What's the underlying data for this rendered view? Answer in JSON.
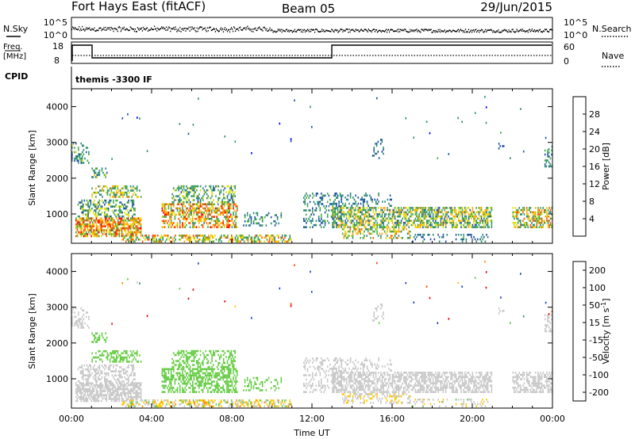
{
  "header": {
    "station": "Fort Hays East (fitACF)",
    "beam": "Beam 05",
    "date": "29/Jun/2015"
  },
  "noise_panel": {
    "left_label": "N.Sky",
    "left_ticks": [
      "10^5",
      "10^0"
    ],
    "right_ticks": [
      "10^5",
      "10^0"
    ],
    "right_label": "N.Search"
  },
  "freq_panel": {
    "left_label_1": "Freq.",
    "left_label_2": "[MHz]",
    "left_ticks": [
      "18",
      "8"
    ],
    "right_ticks": [
      "60",
      "0"
    ],
    "right_label": "Nave"
  },
  "cpid_panel": {
    "left_label": "CPID",
    "text": "themis  -3300  IF"
  },
  "chart_data": [
    {
      "type": "heatmap",
      "name": "Power",
      "x_unit": "Time UT",
      "ylabel": "Slant Range [km]",
      "x_ticks": [
        "00:00",
        "04:00",
        "08:00",
        "12:00",
        "16:00",
        "20:00",
        "00:00"
      ],
      "y_ticks": [
        "1000",
        "2000",
        "3000",
        "4000"
      ],
      "xlim_hours": [
        0,
        24
      ],
      "ylim_km": [
        180,
        4500
      ],
      "colorbar": {
        "label": "Power [dB]",
        "range": [
          0,
          30
        ],
        "tick_labels": [
          "4",
          "8",
          "12",
          "16",
          "20",
          "24",
          "28"
        ],
        "colors": [
          "#0000ff",
          "#1e50a0",
          "#2a8a7a",
          "#44aa44",
          "#dddd00",
          "#ffa500",
          "#ff5500",
          "#ff0000"
        ]
      }
    },
    {
      "type": "heatmap",
      "name": "Velocity",
      "xlabel": "Time UT",
      "ylabel": "Slant Range [km]",
      "x_ticks": [
        "00:00",
        "04:00",
        "08:00",
        "12:00",
        "16:00",
        "20:00",
        "00:00"
      ],
      "y_ticks": [
        "1000",
        "2000",
        "3000",
        "4000"
      ],
      "xlim_hours": [
        0,
        24
      ],
      "ylim_km": [
        180,
        4500
      ],
      "colorbar": {
        "label": "Velocity [m s",
        "label_sup": "-1",
        "label_end": "]",
        "tick_labels": [
          "200",
          "100",
          "50",
          "15",
          "-15",
          "-50",
          "-100",
          "-200"
        ],
        "colors": [
          "#1a3ccc",
          "#3c8c64",
          "#66cc44",
          "#c8c8c8",
          "#ffc800",
          "#ff8c00",
          "#ff4000",
          "#e60000"
        ]
      }
    }
  ],
  "scatter_regions": [
    {
      "t0": 0.2,
      "t1": 3.5,
      "r0": 350,
      "r1": 900,
      "p": 0.7,
      "pw": [
        12,
        28
      ],
      "v": [
        -10,
        10
      ]
    },
    {
      "t0": 0.3,
      "t1": 3.2,
      "r0": 900,
      "r1": 1400,
      "p": 0.45,
      "pw": [
        4,
        18
      ],
      "v": [
        -15,
        15
      ]
    },
    {
      "t0": 1.0,
      "t1": 3.5,
      "r0": 1450,
      "r1": 1800,
      "p": 0.4,
      "pw": [
        8,
        22
      ],
      "v": [
        15,
        60
      ]
    },
    {
      "t0": 1.0,
      "t1": 1.8,
      "r0": 2000,
      "r1": 2300,
      "p": 0.35,
      "pw": [
        6,
        16
      ],
      "v": [
        20,
        60
      ]
    },
    {
      "t0": 0.0,
      "t1": 0.9,
      "r0": 2400,
      "r1": 3000,
      "p": 0.35,
      "pw": [
        4,
        16
      ],
      "v": [
        -10,
        10
      ]
    },
    {
      "t0": 4.5,
      "t1": 8.3,
      "r0": 600,
      "r1": 1300,
      "p": 0.55,
      "pw": [
        10,
        28
      ],
      "v": [
        20,
        60
      ]
    },
    {
      "t0": 5.0,
      "t1": 8.2,
      "r0": 1300,
      "r1": 1800,
      "p": 0.4,
      "pw": [
        6,
        18
      ],
      "v": [
        15,
        50
      ]
    },
    {
      "t0": 2.5,
      "t1": 11.0,
      "r0": 200,
      "r1": 420,
      "p": 0.45,
      "pw": [
        8,
        26
      ],
      "v": [
        -60,
        30
      ]
    },
    {
      "t0": 8.5,
      "t1": 10.5,
      "r0": 650,
      "r1": 1050,
      "p": 0.3,
      "pw": [
        4,
        14
      ],
      "v": [
        15,
        50
      ]
    },
    {
      "t0": 11.5,
      "t1": 13.5,
      "r0": 600,
      "r1": 1600,
      "p": 0.3,
      "pw": [
        4,
        14
      ],
      "v": [
        -10,
        10
      ]
    },
    {
      "t0": 13.0,
      "t1": 21.0,
      "r0": 600,
      "r1": 1200,
      "p": 0.6,
      "pw": [
        6,
        22
      ],
      "v": [
        -12,
        12
      ]
    },
    {
      "t0": 13.5,
      "t1": 17.0,
      "r0": 300,
      "r1": 600,
      "p": 0.35,
      "pw": [
        8,
        24
      ],
      "v": [
        -40,
        15
      ]
    },
    {
      "t0": 17.0,
      "t1": 21.0,
      "r0": 200,
      "r1": 450,
      "p": 0.25,
      "pw": [
        4,
        12
      ],
      "v": [
        -30,
        20
      ]
    },
    {
      "t0": 22.0,
      "t1": 24.0,
      "r0": 600,
      "r1": 1200,
      "p": 0.6,
      "pw": [
        8,
        26
      ],
      "v": [
        -12,
        12
      ]
    },
    {
      "t0": 23.6,
      "t1": 24.0,
      "r0": 2300,
      "r1": 2800,
      "p": 0.5,
      "pw": [
        4,
        14
      ],
      "v": [
        -10,
        10
      ]
    },
    {
      "t0": 13.0,
      "t1": 16.0,
      "r0": 1200,
      "r1": 1600,
      "p": 0.25,
      "pw": [
        4,
        12
      ],
      "v": [
        -10,
        10
      ]
    },
    {
      "t0": 15.0,
      "t1": 15.6,
      "r0": 2600,
      "r1": 3100,
      "p": 0.25,
      "pw": [
        4,
        10
      ],
      "v": [
        -10,
        10
      ]
    },
    {
      "t0": 21.3,
      "t1": 21.6,
      "r0": 2800,
      "r1": 3000,
      "p": 0.3,
      "pw": [
        4,
        10
      ],
      "v": [
        -10,
        10
      ]
    }
  ]
}
